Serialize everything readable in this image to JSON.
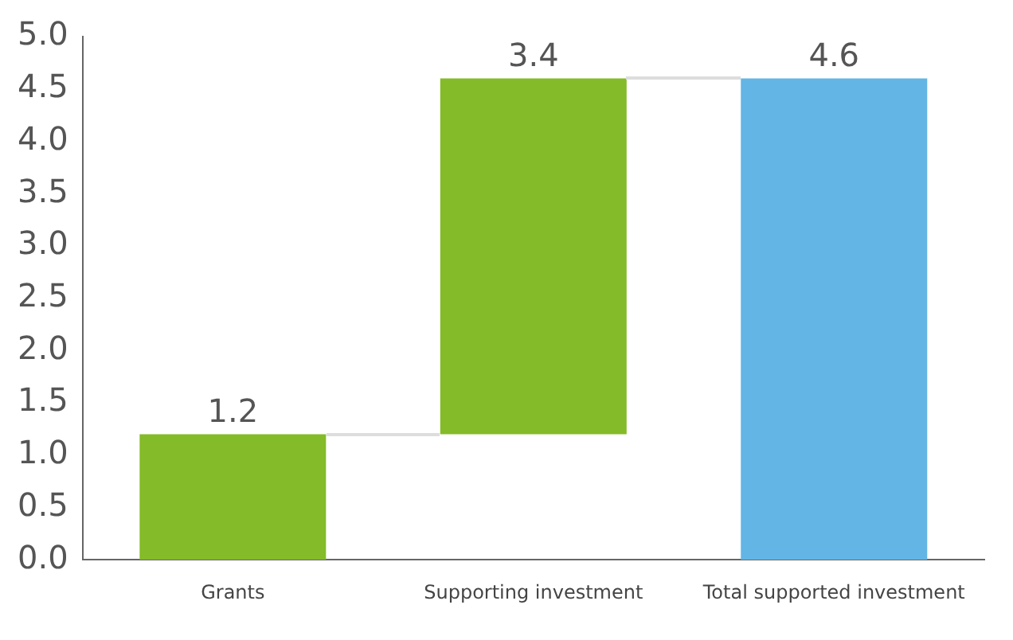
{
  "chart_data": {
    "type": "bar",
    "categories": [
      "Grants",
      "Supporting investment",
      "Total supported investment"
    ],
    "values": [
      1.2,
      3.4,
      4.6
    ],
    "base": [
      0,
      1.2,
      0
    ],
    "colors": [
      "#84bb28",
      "#84bb28",
      "#62b5e5"
    ],
    "ylim": [
      0,
      5
    ],
    "yticks": [
      {
        "value": 0,
        "label": "0.0"
      },
      0.5,
      {
        "value": 1,
        "label": "1.0"
      },
      1.5,
      {
        "value": 2,
        "label": "2.0"
      },
      2.5,
      {
        "value": 3,
        "label": "3.0"
      },
      3.5,
      {
        "value": 4,
        "label": "4.0"
      },
      4.5,
      {
        "value": 5,
        "label": "5.0"
      }
    ],
    "grid": false,
    "legend": false,
    "data_labels": true
  }
}
